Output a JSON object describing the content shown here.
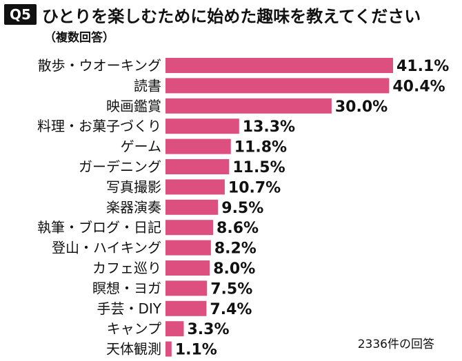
{
  "header": {
    "badge": "Q5",
    "title": "ひとりを楽しむために始めた趣味を教えてください",
    "subtitle": "（複数回答）"
  },
  "note": "2336件の回答",
  "colors": {
    "bar": "#dd4f7e",
    "text": "#111111"
  },
  "chart_data": {
    "type": "bar",
    "orientation": "horizontal",
    "title": "ひとりを楽しむために始めた趣味を教えてください",
    "subtitle": "（複数回答）",
    "categories": [
      "散歩・ウオーキング",
      "読書",
      "映画鑑賞",
      "料理・お菓子づくり",
      "ゲーム",
      "ガーデニング",
      "写真撮影",
      "楽器演奏",
      "執筆・ブログ・日記",
      "登山・ハイキング",
      "カフェ巡り",
      "瞑想・ヨガ",
      "手芸・DIY",
      "キャンプ",
      "天体観測"
    ],
    "values": [
      41.1,
      40.4,
      30.0,
      13.3,
      11.8,
      11.5,
      10.7,
      9.5,
      8.6,
      8.2,
      8.0,
      7.5,
      7.4,
      3.3,
      1.1
    ],
    "value_labels": [
      "41.1%",
      "40.4%",
      "30.0%",
      "13.3%",
      "11.8%",
      "11.5%",
      "10.7%",
      "9.5%",
      "8.6%",
      "8.2%",
      "8.0%",
      "7.5%",
      "7.4%",
      "3.3%",
      "1.1%"
    ],
    "unit": "%",
    "xlim": [
      0,
      41.1
    ],
    "grid": false,
    "legend": "none"
  }
}
